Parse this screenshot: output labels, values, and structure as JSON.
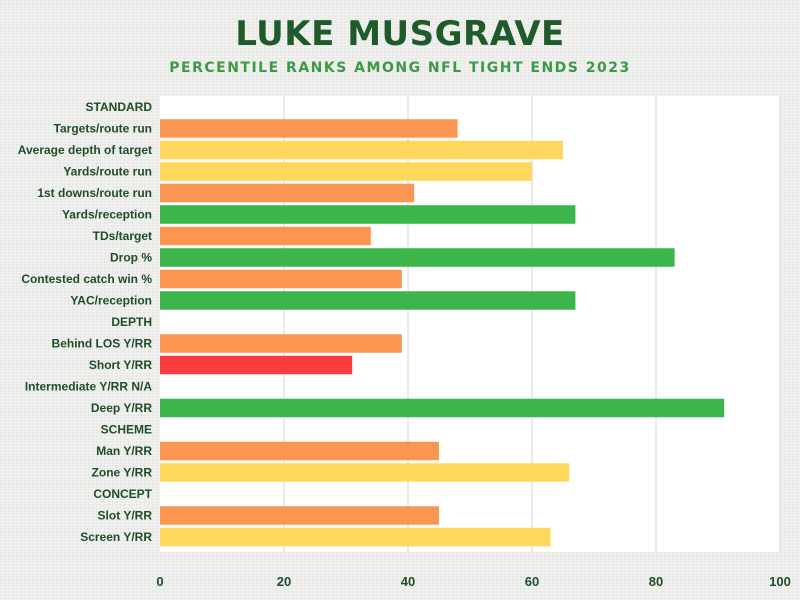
{
  "title": "LUKE MUSGRAVE",
  "subtitle": "PERCENTILE RANKS AMONG NFL TIGHT ENDS 2023",
  "colors": {
    "title": "#1f5a2a",
    "subtitle": "#3b9a44",
    "green": "#3cb54a",
    "yellow": "#fdd85d",
    "orange": "#fb9552",
    "red": "#fa3c3c",
    "grid": "#d6d6d6",
    "label": "#1f4d26"
  },
  "chart_data": {
    "type": "bar",
    "orientation": "horizontal",
    "xlim": [
      0,
      100
    ],
    "xticks": [
      0,
      20,
      40,
      60,
      80,
      100
    ],
    "grid": true,
    "title": "LUKE MUSGRAVE",
    "subtitle": "PERCENTILE RANKS AMONG NFL TIGHT ENDS 2023",
    "categories": [
      {
        "label": "STANDARD",
        "value": null,
        "color": null
      },
      {
        "label": "Targets/route run",
        "value": 48,
        "color": "orange"
      },
      {
        "label": "Average depth of target",
        "value": 65,
        "color": "yellow"
      },
      {
        "label": "Yards/route run",
        "value": 60,
        "color": "yellow"
      },
      {
        "label": "1st downs/route run",
        "value": 41,
        "color": "orange"
      },
      {
        "label": "Yards/reception",
        "value": 67,
        "color": "green"
      },
      {
        "label": "TDs/target",
        "value": 34,
        "color": "orange"
      },
      {
        "label": "Drop %",
        "value": 83,
        "color": "green"
      },
      {
        "label": "Contested catch win %",
        "value": 39,
        "color": "orange"
      },
      {
        "label": "YAC/reception",
        "value": 67,
        "color": "green"
      },
      {
        "label": "DEPTH",
        "value": null,
        "color": null
      },
      {
        "label": "Behind LOS Y/RR",
        "value": 39,
        "color": "orange"
      },
      {
        "label": "Short Y/RR",
        "value": 31,
        "color": "red"
      },
      {
        "label": "Intermediate Y/RR N/A",
        "value": null,
        "color": null
      },
      {
        "label": "Deep Y/RR",
        "value": 91,
        "color": "green"
      },
      {
        "label": "SCHEME",
        "value": null,
        "color": null
      },
      {
        "label": "Man Y/RR",
        "value": 45,
        "color": "orange"
      },
      {
        "label": "Zone Y/RR",
        "value": 66,
        "color": "yellow"
      },
      {
        "label": "CONCEPT",
        "value": null,
        "color": null
      },
      {
        "label": "Slot Y/RR",
        "value": 45,
        "color": "orange"
      },
      {
        "label": "Screen Y/RR",
        "value": 63,
        "color": "yellow"
      }
    ]
  }
}
